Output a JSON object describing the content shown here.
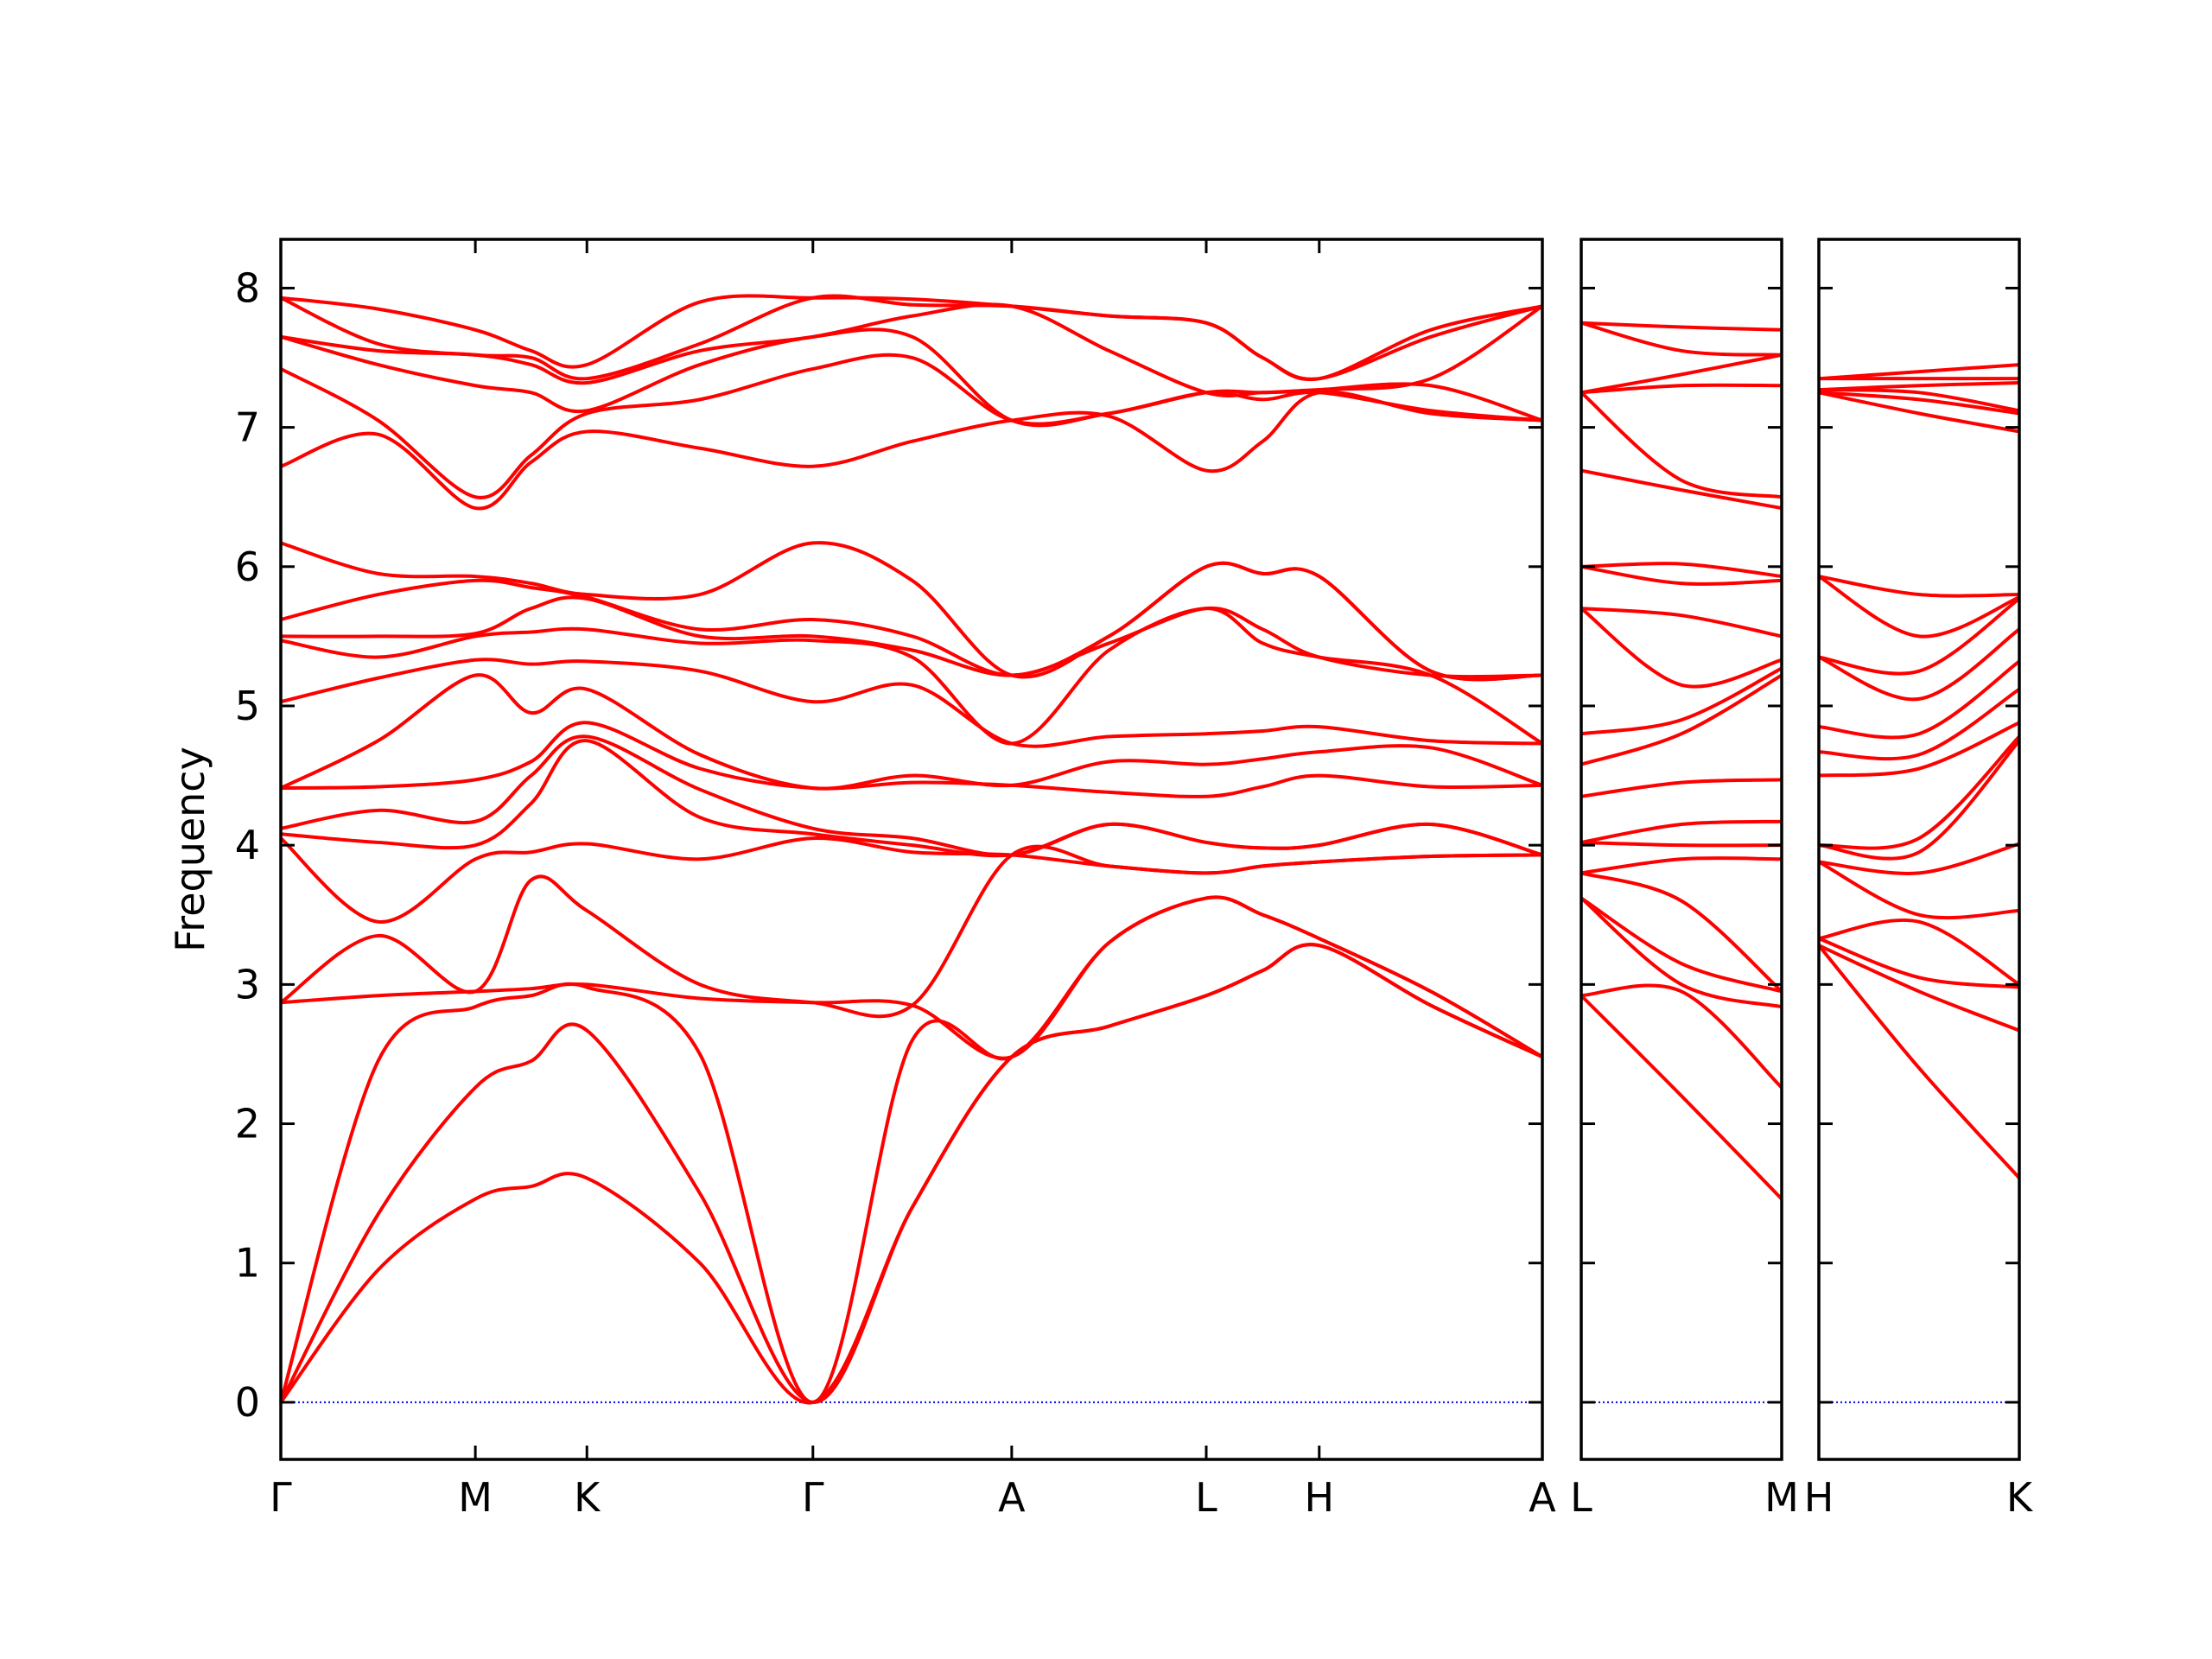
{
  "chart_data": [
    {
      "type": "line",
      "ylabel": "Frequency",
      "color": "#ff0000",
      "hline": 0,
      "hline_color": "#0000ff",
      "ytick_labels": true,
      "x": [
        0,
        0.68,
        1.36,
        1.75,
        2.14,
        2.93,
        3.72,
        4.415,
        5.11,
        5.79,
        6.47,
        6.865,
        7.26,
        8.04,
        8.82
      ],
      "xlim": [
        0,
        8.82
      ],
      "xticks": [
        {
          "value": 0,
          "label": "Γ"
        },
        {
          "value": 1.36,
          "label": "M"
        },
        {
          "value": 2.14,
          "label": "K"
        },
        {
          "value": 3.72,
          "label": "Γ"
        },
        {
          "value": 5.11,
          "label": "A"
        },
        {
          "value": 6.47,
          "label": "L"
        },
        {
          "value": 7.26,
          "label": "H"
        },
        {
          "value": 8.82,
          "label": "A"
        }
      ],
      "ylim": [
        -0.41,
        8.35
      ],
      "yticks": [
        0,
        1,
        2,
        3,
        4,
        5,
        6,
        7,
        8
      ],
      "series": [
        {
          "values": [
            0,
            0.95,
            1.46,
            1.55,
            1.61,
            1.0,
            0,
            1.4,
            2.48,
            2.7,
            2.92,
            3.1,
            3.28,
            2.85,
            2.48
          ]
        },
        {
          "values": [
            0,
            1.35,
            2.26,
            2.45,
            2.67,
            1.5,
            0,
            1.4,
            2.48,
            2.7,
            2.92,
            3.1,
            3.28,
            2.85,
            2.48
          ]
        },
        {
          "values": [
            0,
            2.45,
            2.84,
            2.92,
            2.98,
            2.5,
            0,
            2.6,
            2.48,
            3.3,
            3.62,
            3.5,
            3.33,
            2.95,
            2.48
          ]
        },
        {
          "values": [
            2.87,
            2.92,
            2.95,
            2.97,
            3.0,
            2.9,
            2.87,
            2.85,
            2.48,
            3.3,
            3.62,
            3.5,
            3.33,
            2.95,
            2.48
          ]
        },
        {
          "values": [
            2.87,
            3.35,
            2.95,
            3.75,
            3.53,
            3.0,
            2.87,
            2.85,
            3.93,
            3.85,
            3.8,
            3.85,
            3.88,
            3.92,
            3.93
          ]
        },
        {
          "values": [
            4.05,
            3.45,
            3.9,
            3.95,
            4.01,
            3.9,
            4.05,
            3.95,
            3.93,
            3.85,
            3.8,
            3.85,
            3.88,
            3.92,
            3.93
          ]
        },
        {
          "values": [
            4.08,
            4.02,
            4.0,
            4.3,
            4.75,
            4.2,
            4.08,
            4.0,
            3.93,
            4.15,
            4.02,
            3.98,
            4.0,
            4.15,
            3.93
          ]
        },
        {
          "values": [
            4.12,
            4.25,
            4.17,
            4.5,
            4.78,
            4.4,
            4.12,
            4.05,
            3.93,
            4.15,
            4.02,
            3.98,
            4.0,
            4.15,
            3.93
          ]
        },
        {
          "values": [
            4.41,
            4.42,
            4.47,
            4.6,
            4.88,
            4.55,
            4.41,
            4.45,
            4.43,
            4.38,
            4.35,
            4.42,
            4.5,
            4.42,
            4.43
          ]
        },
        {
          "values": [
            4.41,
            4.75,
            5.22,
            4.95,
            5.12,
            4.65,
            4.41,
            4.5,
            4.43,
            4.6,
            4.58,
            4.62,
            4.67,
            4.7,
            4.43
          ]
        },
        {
          "values": [
            5.03,
            5.2,
            5.33,
            5.3,
            5.32,
            5.25,
            5.03,
            5.15,
            4.73,
            4.78,
            4.8,
            4.82,
            4.85,
            4.75,
            4.73
          ]
        },
        {
          "values": [
            5.47,
            5.35,
            5.5,
            5.53,
            5.55,
            5.45,
            5.47,
            5.35,
            4.73,
            5.4,
            5.7,
            5.45,
            5.35,
            5.22,
            4.73
          ]
        },
        {
          "values": [
            5.5,
            5.5,
            5.52,
            5.7,
            5.77,
            5.5,
            5.5,
            5.4,
            5.22,
            5.45,
            5.7,
            5.55,
            5.35,
            5.22,
            5.22
          ]
        },
        {
          "values": [
            5.62,
            5.8,
            5.9,
            5.85,
            5.78,
            5.55,
            5.62,
            5.5,
            5.22,
            5.5,
            6.0,
            5.95,
            5.93,
            5.25,
            5.22
          ]
        },
        {
          "values": [
            6.17,
            5.95,
            5.93,
            5.88,
            5.8,
            5.8,
            6.17,
            5.9,
            5.22,
            5.5,
            6.0,
            5.95,
            5.93,
            5.25,
            5.22
          ]
        },
        {
          "values": [
            6.72,
            6.95,
            6.42,
            6.75,
            6.97,
            6.85,
            6.72,
            6.9,
            7.05,
            7.08,
            6.69,
            6.9,
            7.25,
            7.1,
            7.05
          ]
        },
        {
          "values": [
            7.42,
            7.05,
            6.5,
            6.8,
            7.1,
            7.2,
            7.42,
            7.5,
            7.05,
            7.1,
            7.25,
            7.2,
            7.25,
            7.12,
            7.05
          ]
        },
        {
          "values": [
            7.65,
            7.45,
            7.3,
            7.25,
            7.12,
            7.45,
            7.65,
            7.65,
            7.05,
            7.1,
            7.25,
            7.25,
            7.27,
            7.3,
            7.05
          ]
        },
        {
          "values": [
            7.65,
            7.55,
            7.52,
            7.45,
            7.32,
            7.55,
            7.65,
            7.8,
            7.87,
            7.55,
            7.25,
            7.25,
            7.27,
            7.35,
            7.87
          ]
        },
        {
          "values": [
            7.93,
            7.6,
            7.52,
            7.5,
            7.35,
            7.6,
            7.93,
            7.88,
            7.87,
            7.8,
            7.75,
            7.5,
            7.35,
            7.65,
            7.87
          ]
        },
        {
          "values": [
            7.93,
            7.85,
            7.7,
            7.55,
            7.45,
            7.9,
            7.93,
            7.92,
            7.87,
            7.8,
            7.75,
            7.5,
            7.35,
            7.7,
            7.87
          ]
        }
      ]
    },
    {
      "type": "line",
      "color": "#ff0000",
      "hline": 0,
      "hline_color": "#0000ff",
      "ytick_labels": false,
      "x": [
        0,
        0.7,
        1.4
      ],
      "xlim": [
        0,
        1.4
      ],
      "xticks": [
        {
          "value": 0,
          "label": "L"
        },
        {
          "value": 1.4,
          "label": "M"
        }
      ],
      "ylim": [
        -0.41,
        8.35
      ],
      "yticks": [
        0,
        1,
        2,
        3,
        4,
        5,
        6,
        7,
        8
      ],
      "series": [
        {
          "values": [
            2.92,
            2.2,
            1.46
          ]
        },
        {
          "values": [
            2.92,
            2.95,
            2.26
          ]
        },
        {
          "values": [
            3.62,
            3.0,
            2.84
          ]
        },
        {
          "values": [
            3.62,
            3.15,
            2.95
          ]
        },
        {
          "values": [
            3.8,
            3.6,
            2.95
          ]
        },
        {
          "values": [
            3.8,
            3.9,
            3.9
          ]
        },
        {
          "values": [
            4.02,
            4.0,
            4.0
          ]
        },
        {
          "values": [
            4.02,
            4.15,
            4.17
          ]
        },
        {
          "values": [
            4.35,
            4.45,
            4.47
          ]
        },
        {
          "values": [
            4.58,
            4.8,
            5.22
          ]
        },
        {
          "values": [
            4.8,
            4.9,
            5.27
          ]
        },
        {
          "values": [
            5.7,
            5.15,
            5.33
          ]
        },
        {
          "values": [
            5.7,
            5.65,
            5.5
          ]
        },
        {
          "values": [
            6.0,
            5.88,
            5.9
          ]
        },
        {
          "values": [
            6.0,
            6.02,
            5.93
          ]
        },
        {
          "values": [
            6.69,
            6.55,
            6.42
          ]
        },
        {
          "values": [
            7.25,
            6.62,
            6.5
          ]
        },
        {
          "values": [
            7.25,
            7.3,
            7.3
          ]
        },
        {
          "values": [
            7.25,
            7.38,
            7.52
          ]
        },
        {
          "values": [
            7.75,
            7.55,
            7.52
          ]
        },
        {
          "values": [
            7.75,
            7.72,
            7.7
          ]
        }
      ]
    },
    {
      "type": "line",
      "color": "#ff0000",
      "hline": 0,
      "hline_color": "#0000ff",
      "ytick_labels": false,
      "x": [
        0,
        0.7,
        1.4
      ],
      "xlim": [
        0,
        1.4
      ],
      "xticks": [
        {
          "value": 0,
          "label": "H"
        },
        {
          "value": 1.4,
          "label": "K"
        }
      ],
      "ylim": [
        -0.41,
        8.35
      ],
      "yticks": [
        0,
        1,
        2,
        3,
        4,
        5,
        6,
        7,
        8
      ],
      "series": [
        {
          "values": [
            3.28,
            2.4,
            1.61
          ]
        },
        {
          "values": [
            3.28,
            2.95,
            2.67
          ]
        },
        {
          "values": [
            3.33,
            3.05,
            2.98
          ]
        },
        {
          "values": [
            3.33,
            3.45,
            3.0
          ]
        },
        {
          "values": [
            3.88,
            3.5,
            3.53
          ]
        },
        {
          "values": [
            3.88,
            3.8,
            4.01
          ]
        },
        {
          "values": [
            4.0,
            3.95,
            4.75
          ]
        },
        {
          "values": [
            4.0,
            4.05,
            4.78
          ]
        },
        {
          "values": [
            4.5,
            4.55,
            4.88
          ]
        },
        {
          "values": [
            4.67,
            4.65,
            5.12
          ]
        },
        {
          "values": [
            4.85,
            4.8,
            5.32
          ]
        },
        {
          "values": [
            5.35,
            5.05,
            5.55
          ]
        },
        {
          "values": [
            5.35,
            5.25,
            5.77
          ]
        },
        {
          "values": [
            5.93,
            5.5,
            5.78
          ]
        },
        {
          "values": [
            5.93,
            5.8,
            5.8
          ]
        },
        {
          "values": [
            7.25,
            7.1,
            6.97
          ]
        },
        {
          "values": [
            7.25,
            7.2,
            7.1
          ]
        },
        {
          "values": [
            7.27,
            7.25,
            7.12
          ]
        },
        {
          "values": [
            7.27,
            7.3,
            7.32
          ]
        },
        {
          "values": [
            7.35,
            7.35,
            7.35
          ]
        },
        {
          "values": [
            7.35,
            7.4,
            7.45
          ]
        }
      ]
    }
  ]
}
